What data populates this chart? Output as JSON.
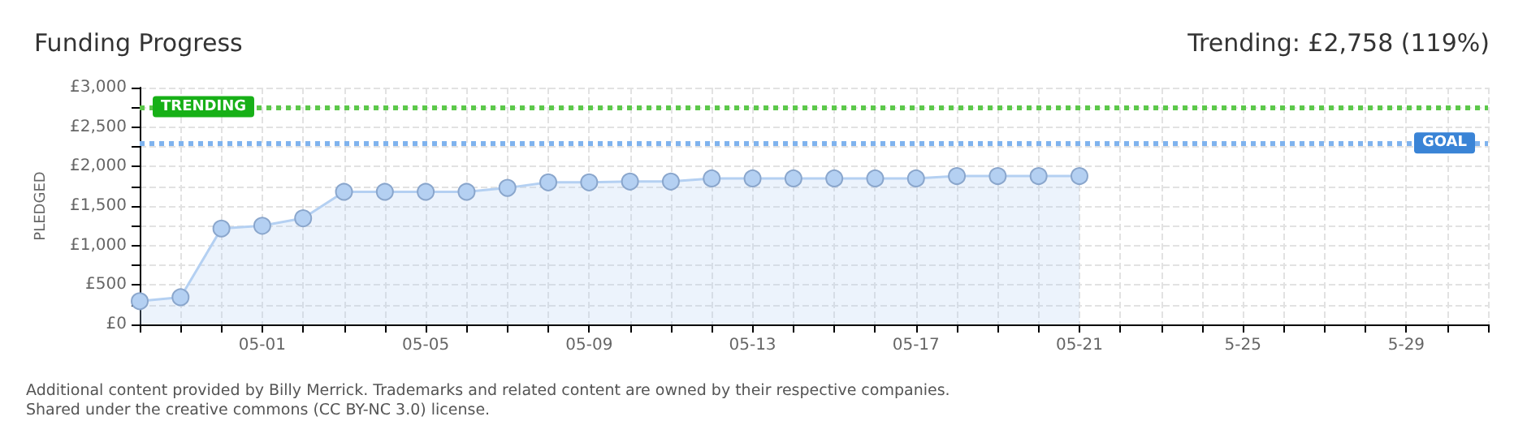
{
  "chart_data": {
    "type": "area",
    "title": "Funding Progress",
    "subtitle": "Trending: £2,758 (119%)",
    "ylabel": "PLEDGED",
    "x": [
      "--04-28",
      "--04-29",
      "--04-30",
      "--05-01",
      "--05-02",
      "--05-03",
      "--05-04",
      "--05-05",
      "--05-06",
      "--05-07",
      "--05-08",
      "--05-09",
      "--05-10",
      "--05-11",
      "--05-12",
      "--05-13",
      "--05-14",
      "--05-15",
      "--05-16",
      "--05-17",
      "--05-18",
      "--05-19",
      "--05-20",
      "--05-21"
    ],
    "series": [
      {
        "color": "#b4d0f2",
        "values": [
          295,
          345,
          1215,
          1250,
          1345,
          1680,
          1680,
          1680,
          1680,
          1730,
          1800,
          1800,
          1810,
          1810,
          1850,
          1850,
          1850,
          1850,
          1850,
          1850,
          1880,
          1880,
          1880,
          1880
        ]
      }
    ],
    "xlim": [
      "--04-28",
      "--05-31"
    ],
    "xticks": [
      {
        "value": "--04-28",
        "label": null
      },
      {
        "value": "--04-29",
        "label": null
      },
      {
        "value": "--04-30",
        "label": null
      },
      {
        "value": "--05-01",
        "label": "05-01"
      },
      {
        "value": "--05-02",
        "label": null
      },
      {
        "value": "--05-03",
        "label": null
      },
      {
        "value": "--05-04",
        "label": null
      },
      {
        "value": "--05-05",
        "label": "05-05"
      },
      {
        "value": "--05-06",
        "label": null
      },
      {
        "value": "--05-07",
        "label": null
      },
      {
        "value": "--05-08",
        "label": null
      },
      {
        "value": "--05-09",
        "label": "05-09"
      },
      {
        "value": "--05-10",
        "label": null
      },
      {
        "value": "--05-11",
        "label": null
      },
      {
        "value": "--05-12",
        "label": null
      },
      {
        "value": "--05-13",
        "label": "05-13"
      },
      {
        "value": "--05-14",
        "label": null
      },
      {
        "value": "--05-15",
        "label": null
      },
      {
        "value": "--05-16",
        "label": null
      },
      {
        "value": "--05-17",
        "label": "05-17"
      },
      {
        "value": "--05-18",
        "label": null
      },
      {
        "value": "--05-19",
        "label": null
      },
      {
        "value": "--05-20",
        "label": null
      },
      {
        "value": "--05-21",
        "label": "05-21"
      },
      {
        "value": "--05-22",
        "label": null
      },
      {
        "value": "--05-23",
        "label": null
      },
      {
        "value": "--05-24",
        "label": null
      },
      {
        "value": "--05-25",
        "label": "5-25"
      },
      {
        "value": "--05-26",
        "label": null
      },
      {
        "value": "--05-27",
        "label": null
      },
      {
        "value": "--05-28",
        "label": null
      },
      {
        "value": "--05-29",
        "label": "5-29"
      },
      {
        "value": "--05-30",
        "label": null
      },
      {
        "value": "--05-31",
        "label": null
      }
    ],
    "ylim": [
      0,
      3000
    ],
    "yticks": [
      {
        "value": 0,
        "label": "£0"
      },
      {
        "value": 250,
        "label": null
      },
      {
        "value": 500,
        "label": "£500"
      },
      {
        "value": 750,
        "label": null
      },
      {
        "value": 1000,
        "label": "£1,000"
      },
      {
        "value": 1250,
        "label": null
      },
      {
        "value": 1500,
        "label": "£1,500"
      },
      {
        "value": 1750,
        "label": null
      },
      {
        "value": 2000,
        "label": "£2,000"
      },
      {
        "value": 2250,
        "label": null
      },
      {
        "value": 2500,
        "label": "£2,500"
      },
      {
        "value": 2750,
        "label": null
      },
      {
        "value": 3000,
        "label": "£3,000"
      }
    ],
    "ref_lines": [
      {
        "axis": "y",
        "value": 2758,
        "label": "TRENDING",
        "color": "#5cc84a",
        "line_style": "dotted"
      },
      {
        "axis": "y",
        "value": 2300,
        "label": "GOAL",
        "color": "#7fb3ee",
        "line_style": "dotted"
      }
    ],
    "grid": true,
    "marker": "circle",
    "line_style": "solid",
    "annotations": [
      "Additional content provided by Billy Merrick. Trademarks and related content are owned by their respective companies.",
      "Shared under the creative commons (CC BY-NC 3.0) license."
    ]
  }
}
